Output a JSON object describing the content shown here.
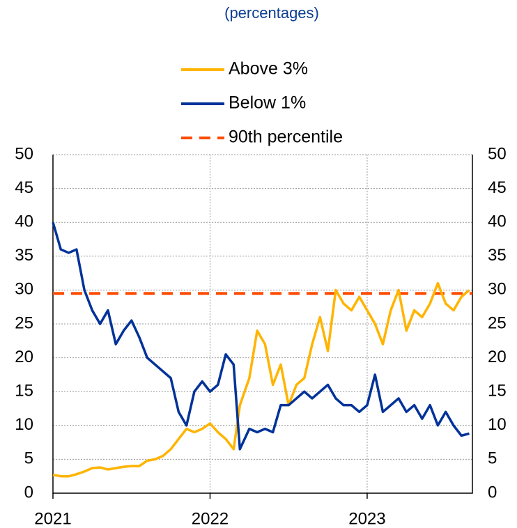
{
  "chart_data": {
    "type": "line",
    "subtitle": "(percentages)",
    "x": [
      2021.0,
      2021.05,
      2021.1,
      2021.15,
      2021.2,
      2021.25,
      2021.3,
      2021.35,
      2021.4,
      2021.45,
      2021.5,
      2021.55,
      2021.6,
      2021.65,
      2021.7,
      2021.75,
      2021.8,
      2021.85,
      2021.9,
      2021.95,
      2022.0,
      2022.05,
      2022.1,
      2022.15,
      2022.19,
      2022.25,
      2022.3,
      2022.35,
      2022.4,
      2022.45,
      2022.5,
      2022.55,
      2022.6,
      2022.65,
      2022.7,
      2022.75,
      2022.8,
      2022.85,
      2022.9,
      2022.95,
      2023.0,
      2023.05,
      2023.1,
      2023.15,
      2023.2,
      2023.25,
      2023.3,
      2023.35,
      2023.4,
      2023.45,
      2023.5,
      2023.55,
      2023.6,
      2023.65
    ],
    "series": [
      {
        "name": "Above 3%",
        "color": "#ffb400",
        "values": [
          2.7,
          2.5,
          2.5,
          2.8,
          3.2,
          3.7,
          3.8,
          3.5,
          3.7,
          3.9,
          4,
          4,
          4.8,
          5,
          5.5,
          6.5,
          8,
          9.5,
          9,
          9.5,
          10.3,
          9,
          8,
          6.5,
          13,
          17,
          24,
          22,
          16,
          19,
          13,
          16,
          17,
          22,
          26,
          21,
          30,
          28,
          27,
          29,
          27,
          25,
          22,
          27,
          30,
          24,
          27,
          26,
          28,
          31,
          28,
          27,
          29,
          30
        ]
      },
      {
        "name": "Below 1%",
        "color": "#003299",
        "values": [
          40,
          36,
          35.5,
          36,
          30,
          27,
          25,
          27,
          22,
          24,
          25.5,
          23,
          20,
          19,
          18,
          17,
          12,
          10,
          15,
          16.5,
          15,
          16,
          20.5,
          19,
          6.5,
          9.5,
          9,
          9.5,
          9,
          13,
          13,
          14,
          15,
          14,
          15,
          16,
          14,
          13,
          13,
          12,
          13,
          17.5,
          12,
          13,
          14,
          12,
          13,
          11,
          13,
          10,
          12,
          10,
          8.5,
          8.8
        ]
      }
    ],
    "reference_line": {
      "name": "90th percentile",
      "value": 29.5,
      "color": "#ff4b00",
      "dashed": true
    },
    "xlim": [
      2021,
      2023.67
    ],
    "xticks": [
      2021,
      2022,
      2023
    ],
    "ylim": [
      0,
      50
    ],
    "yticks": [
      0,
      5,
      10,
      15,
      20,
      25,
      30,
      35,
      40,
      45,
      50
    ],
    "y2lim": [
      0,
      50
    ],
    "y2ticks": [
      0,
      5,
      10,
      15,
      20,
      25,
      30,
      35,
      40,
      45,
      50
    ],
    "grid": true
  }
}
